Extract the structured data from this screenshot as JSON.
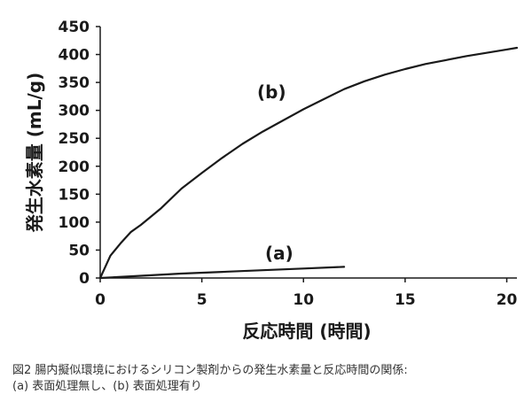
{
  "chart_data": {
    "type": "line",
    "xlabel": "反応時間 (時間)",
    "ylabel": "発生水素量 (mL/g)",
    "xlim": [
      0,
      20.5
    ],
    "ylim": [
      0,
      450
    ],
    "xticks": [
      0,
      5,
      10,
      15,
      20
    ],
    "yticks": [
      0,
      50,
      100,
      150,
      200,
      250,
      300,
      350,
      400,
      450
    ],
    "grid": false,
    "series": [
      {
        "name": "(b)",
        "x": [
          0,
          0.5,
          1.0,
          1.5,
          2.0,
          2.5,
          3.0,
          4.0,
          5.0,
          6.0,
          7.0,
          8.0,
          9.0,
          10.0,
          11.0,
          12.0,
          13.0,
          14.0,
          15.0,
          16.0,
          17.0,
          18.0,
          19.0,
          20.0,
          20.5
        ],
        "y": [
          0,
          40,
          62,
          82,
          95,
          110,
          125,
          160,
          188,
          215,
          240,
          262,
          282,
          302,
          320,
          338,
          352,
          364,
          374,
          383,
          390,
          397,
          403,
          409,
          412
        ]
      },
      {
        "name": "(a)",
        "x": [
          0,
          2,
          4,
          6,
          8,
          10,
          12
        ],
        "y": [
          0,
          4,
          8,
          11,
          14,
          17,
          20
        ]
      }
    ]
  },
  "caption": {
    "line1": "図2 腸内擬似環境におけるシリコン製剤からの発生水素量と反応時間の関係:",
    "line2": "(a) 表面処理無し、(b) 表面処理有り"
  }
}
